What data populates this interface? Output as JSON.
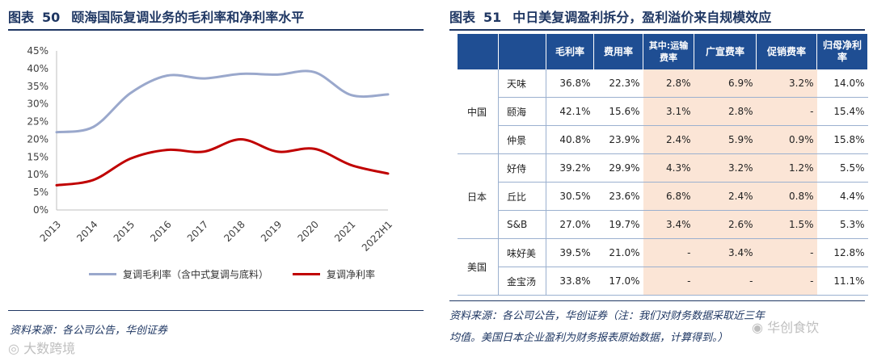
{
  "left_panel": {
    "title_prefix": "图表",
    "title_num": "50",
    "title": "颐海国际复调业务的毛利率和净利率水平",
    "source": "资料来源：各公司公告，华创证券"
  },
  "right_panel": {
    "title_prefix": "图表",
    "title_num": "51",
    "title": "中日美复调盈利拆分，盈利溢价来自规模效应",
    "source_line1": "资料来源：各公司公告，华创证券（注：我们对财务数据采取近三年",
    "source_line2": "均值。美国日本企业盈利为财务报表原始数据，计算得到。）"
  },
  "chart_data": {
    "type": "line",
    "categories": [
      "2013",
      "2014",
      "2015",
      "2016",
      "2017",
      "2018",
      "2019",
      "2020",
      "2021",
      "2022H1"
    ],
    "series": [
      {
        "name": "复调毛利率（含中式复调与底料）",
        "color": "#9aa8cc",
        "values": [
          0.22,
          0.235,
          0.33,
          0.38,
          0.372,
          0.385,
          0.383,
          0.39,
          0.325,
          0.327
        ]
      },
      {
        "name": "复调净利率",
        "color": "#c00000",
        "values": [
          0.07,
          0.085,
          0.145,
          0.17,
          0.165,
          0.2,
          0.165,
          0.173,
          0.127,
          0.103
        ]
      }
    ],
    "ylim": [
      0,
      0.45
    ],
    "yticks": [
      "0%",
      "5%",
      "10%",
      "15%",
      "20%",
      "25%",
      "30%",
      "35%",
      "40%",
      "45%"
    ],
    "grid": false,
    "legend": "bottom"
  },
  "table": {
    "headers": [
      "毛利率",
      "费用率",
      "其中:运输费率",
      "广宣费率",
      "促销费率",
      "归母净利率"
    ],
    "groups": [
      {
        "country": "中国",
        "rows": [
          {
            "company": "天味",
            "values": [
              "36.8%",
              "22.3%",
              "2.8%",
              "6.9%",
              "3.2%",
              "14.0%"
            ]
          },
          {
            "company": "颐海",
            "values": [
              "42.1%",
              "15.6%",
              "3.1%",
              "2.8%",
              "-",
              "15.4%"
            ]
          },
          {
            "company": "仲景",
            "values": [
              "40.8%",
              "23.9%",
              "2.4%",
              "5.9%",
              "0.9%",
              "15.8%"
            ]
          }
        ]
      },
      {
        "country": "日本",
        "rows": [
          {
            "company": "好侍",
            "values": [
              "39.2%",
              "29.9%",
              "4.3%",
              "3.2%",
              "1.2%",
              "5.5%"
            ]
          },
          {
            "company": "丘比",
            "values": [
              "30.5%",
              "23.6%",
              "6.8%",
              "2.4%",
              "0.8%",
              "4.4%"
            ]
          },
          {
            "company": "S&B",
            "values": [
              "27.0%",
              "19.7%",
              "3.4%",
              "2.6%",
              "1.5%",
              "5.3%"
            ]
          }
        ]
      },
      {
        "country": "美国",
        "rows": [
          {
            "company": "味好美",
            "values": [
              "39.5%",
              "21.0%",
              "-",
              "3.4%",
              "-",
              "12.8%"
            ]
          },
          {
            "company": "金宝汤",
            "values": [
              "33.8%",
              "17.0%",
              "-",
              "-",
              "-",
              "11.1%"
            ]
          }
        ]
      }
    ]
  },
  "watermarks": {
    "left": "大数跨境",
    "right": "华创食饮"
  }
}
